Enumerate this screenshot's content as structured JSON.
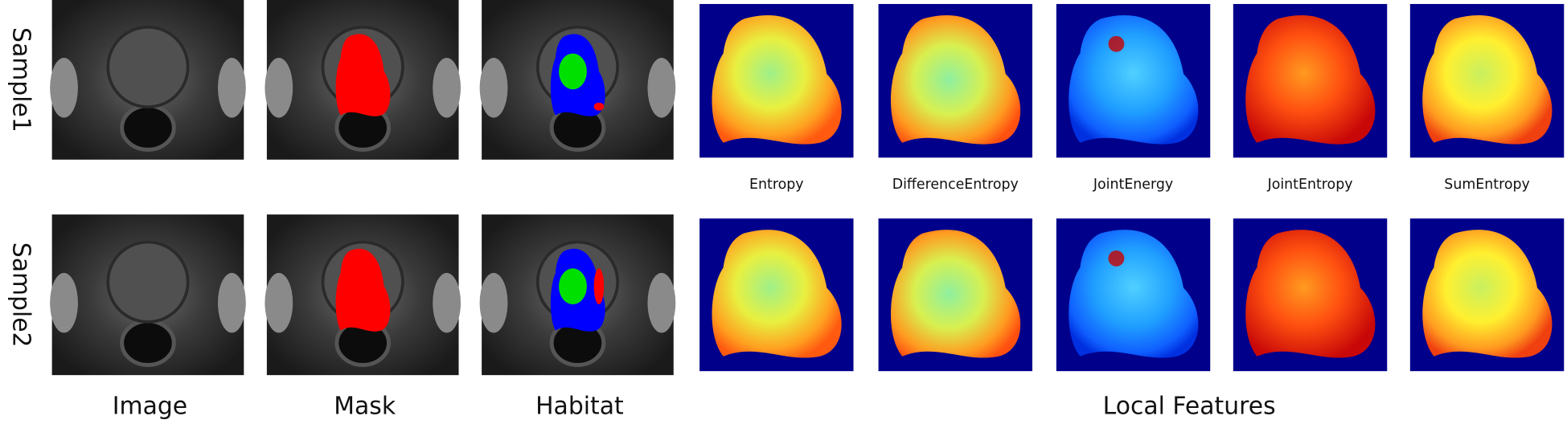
{
  "row_labels": [
    "Sample1",
    "Sample2"
  ],
  "column_labels": [
    "Image",
    "Mask",
    "Habitat"
  ],
  "group_label": "Local Features",
  "feature_labels": [
    "Entropy",
    "DifferenceEntropy",
    "JointEnergy",
    "JointEntropy",
    "SumEntropy"
  ]
}
